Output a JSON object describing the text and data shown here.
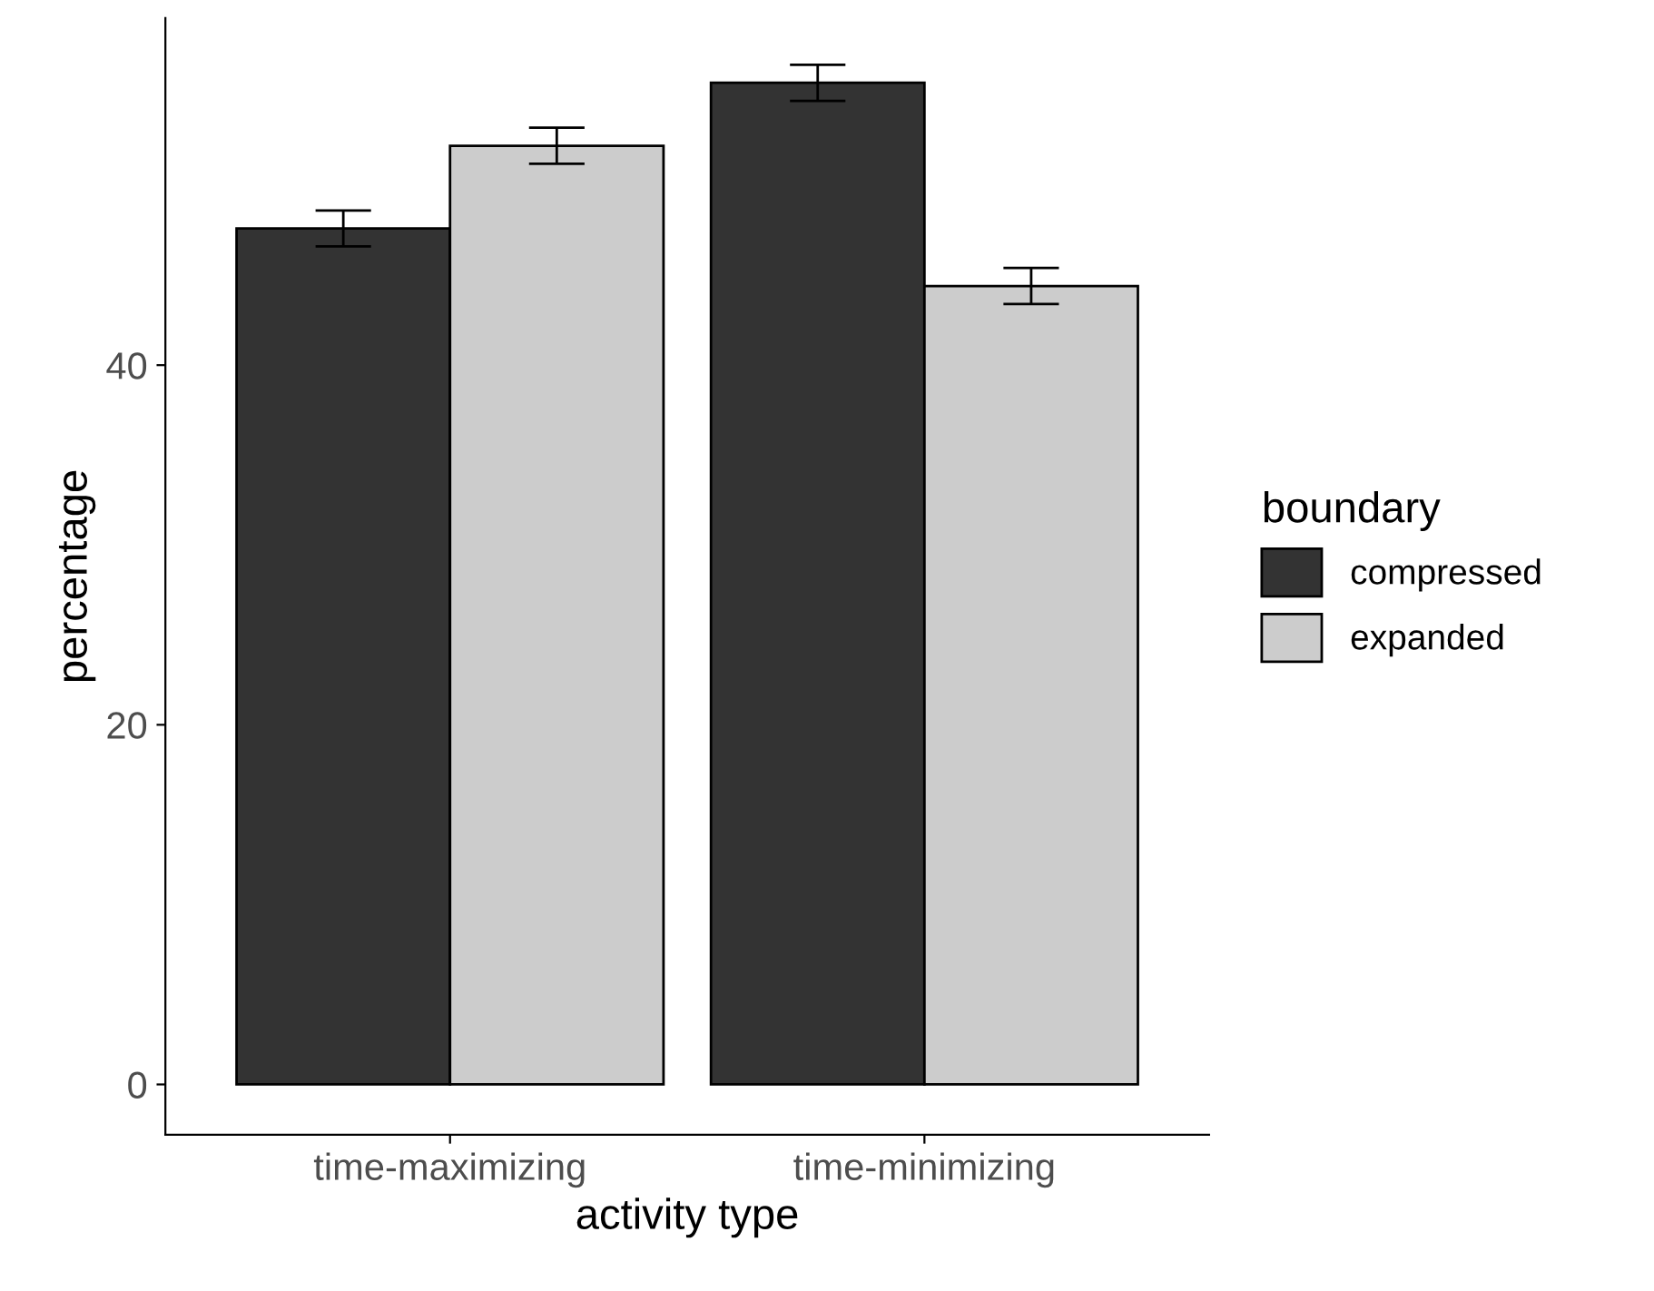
{
  "chart_data": {
    "type": "bar",
    "xlabel": "activity type",
    "ylabel": "percentage",
    "legend_title": "boundary",
    "categories": [
      "time-maximizing",
      "time-minimizing"
    ],
    "series": [
      {
        "name": "compressed",
        "color": "#333333",
        "values": [
          47.6,
          55.7
        ],
        "errors": [
          1.0,
          1.0
        ]
      },
      {
        "name": "expanded",
        "color": "#cccccc",
        "values": [
          52.2,
          44.4
        ],
        "errors": [
          1.0,
          1.0
        ]
      }
    ],
    "ylim": [
      -2.8,
      59.3
    ],
    "yticks": [
      0,
      20,
      40
    ],
    "grid": false,
    "legend": "right"
  }
}
